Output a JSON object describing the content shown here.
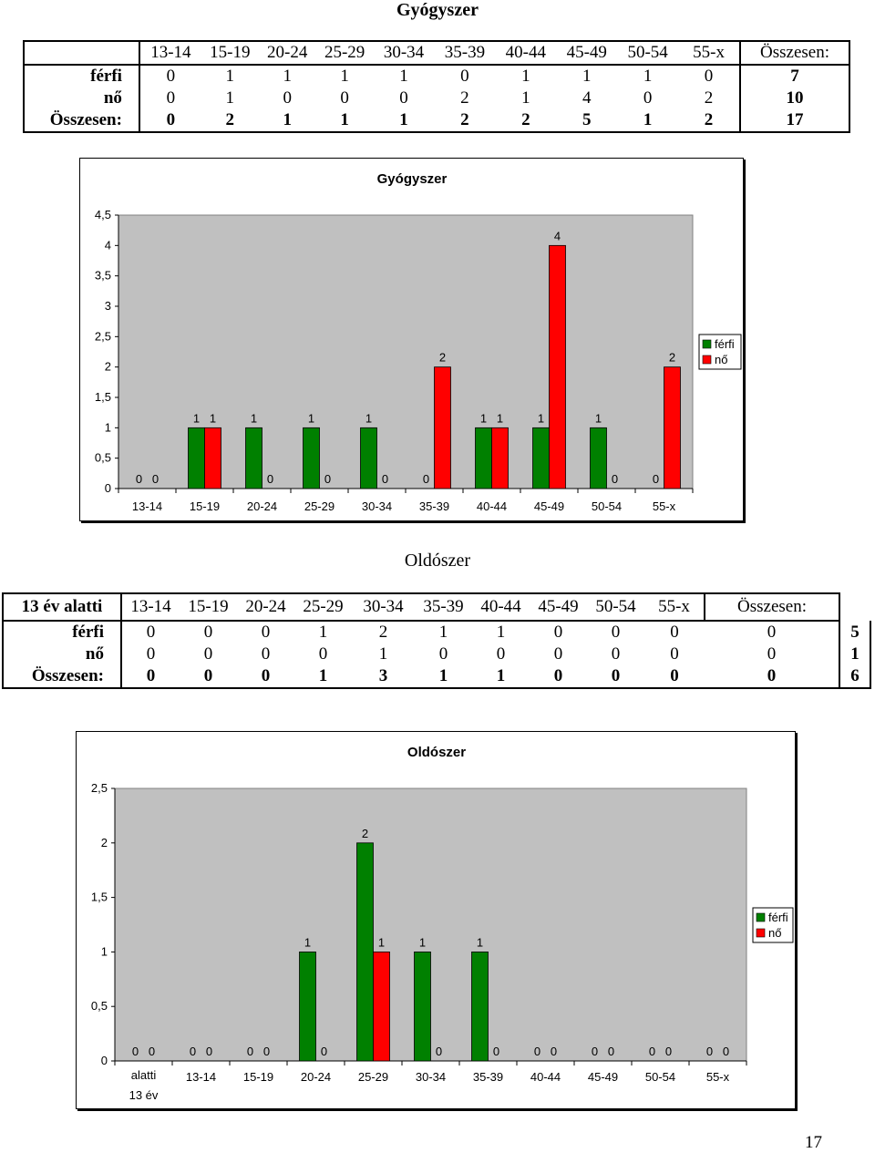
{
  "section1": {
    "heading": "Gyógyszer",
    "table": {
      "headers": [
        "",
        "13-14",
        "15-19",
        "20-24",
        "25-29",
        "30-34",
        "35-39",
        "40-44",
        "45-49",
        "50-54",
        "55-x",
        "Összesen:"
      ],
      "rows": [
        {
          "label": "férfi",
          "values": [
            "0",
            "1",
            "1",
            "1",
            "1",
            "0",
            "1",
            "1",
            "1",
            "0"
          ],
          "total": "7"
        },
        {
          "label": "nő",
          "values": [
            "0",
            "1",
            "0",
            "0",
            "0",
            "2",
            "1",
            "4",
            "0",
            "2"
          ],
          "total": "10"
        },
        {
          "label": "Összesen:",
          "values": [
            "0",
            "2",
            "1",
            "1",
            "1",
            "2",
            "2",
            "5",
            "1",
            "2"
          ],
          "total": "17"
        }
      ]
    }
  },
  "chart1": {
    "title": "Gyógyszer",
    "legend": [
      "férfi",
      "nő"
    ]
  },
  "section2": {
    "heading": "Oldószer",
    "table": {
      "headers": [
        "13 év alatti",
        "13-14",
        "15-19",
        "20-24",
        "25-29",
        "30-34",
        "35-39",
        "40-44",
        "45-49",
        "50-54",
        "55-x",
        "Összesen:"
      ],
      "rows": [
        {
          "label": "férfi",
          "values": [
            "0",
            "0",
            "0",
            "1",
            "2",
            "1",
            "1",
            "0",
            "0",
            "0",
            "0"
          ],
          "total": "5"
        },
        {
          "label": "nő",
          "values": [
            "0",
            "0",
            "0",
            "0",
            "1",
            "0",
            "0",
            "0",
            "0",
            "0",
            "0"
          ],
          "total": "1"
        },
        {
          "label": "Összesen:",
          "values": [
            "0",
            "0",
            "0",
            "1",
            "3",
            "1",
            "1",
            "0",
            "0",
            "0",
            "0"
          ],
          "total": "6"
        }
      ]
    }
  },
  "chart2": {
    "title": "Oldószer",
    "legend": [
      "férfi",
      "nő"
    ]
  },
  "page_number": "17",
  "colors": {
    "ferfi": "#008000",
    "no": "#ff0000",
    "plot_bg": "#c0c0c0"
  },
  "chart_data": [
    {
      "type": "bar",
      "title": "Gyógyszer",
      "categories": [
        "13-14",
        "15-19",
        "20-24",
        "25-29",
        "30-34",
        "35-39",
        "40-44",
        "45-49",
        "50-54",
        "55-x"
      ],
      "series": [
        {
          "name": "férfi",
          "values": [
            0,
            1,
            1,
            1,
            1,
            0,
            1,
            1,
            1,
            0
          ]
        },
        {
          "name": "nő",
          "values": [
            0,
            1,
            0,
            0,
            0,
            2,
            1,
            4,
            0,
            2
          ]
        }
      ],
      "ylim": [
        0,
        4.5
      ],
      "yticks": [
        "0",
        "0,5",
        "1",
        "1,5",
        "2",
        "2,5",
        "3",
        "3,5",
        "4",
        "4,5"
      ],
      "legend_position": "right",
      "data_labels": true
    },
    {
      "type": "bar",
      "title": "Oldószer",
      "categories": [
        [
          "13 év",
          "alatti"
        ],
        "13-14",
        "15-19",
        "20-24",
        "25-29",
        "30-34",
        "35-39",
        "40-44",
        "45-49",
        "50-54",
        "55-x"
      ],
      "series": [
        {
          "name": "férfi",
          "values": [
            0,
            0,
            0,
            1,
            2,
            1,
            1,
            0,
            0,
            0,
            0
          ]
        },
        {
          "name": "nő",
          "values": [
            0,
            0,
            0,
            0,
            1,
            0,
            0,
            0,
            0,
            0,
            0
          ]
        }
      ],
      "ylim": [
        0,
        2.5
      ],
      "yticks": [
        "0",
        "0,5",
        "1",
        "1,5",
        "2",
        "2,5"
      ],
      "legend_position": "right",
      "data_labels": true
    }
  ]
}
